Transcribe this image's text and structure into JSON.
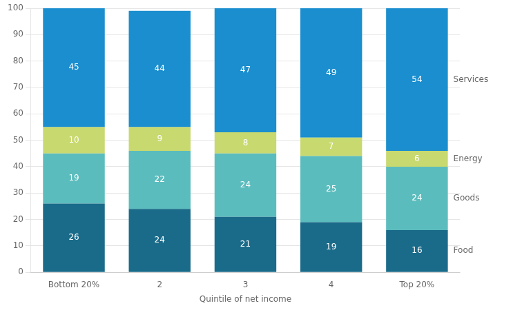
{
  "chart_data": {
    "type": "bar",
    "stacked": true,
    "categories": [
      "Bottom 20%",
      "2",
      "3",
      "4",
      "Top 20%"
    ],
    "series": [
      {
        "name": "Food",
        "color": "#1a6b8a",
        "values": [
          26,
          24,
          21,
          19,
          16
        ]
      },
      {
        "name": "Goods",
        "color": "#5bbcbd",
        "values": [
          19,
          22,
          24,
          25,
          24
        ]
      },
      {
        "name": "Energy",
        "color": "#c8d96f",
        "values": [
          10,
          9,
          8,
          7,
          6
        ]
      },
      {
        "name": "Services",
        "color": "#1a8ece",
        "values": [
          45,
          44,
          47,
          49,
          54
        ]
      }
    ],
    "xlabel": "Quintile of net income",
    "ylim": [
      0,
      100
    ],
    "yticks": [
      0,
      10,
      20,
      30,
      40,
      50,
      60,
      70,
      80,
      90,
      100
    ],
    "grid": true,
    "data_labels": true,
    "legend": "right"
  }
}
